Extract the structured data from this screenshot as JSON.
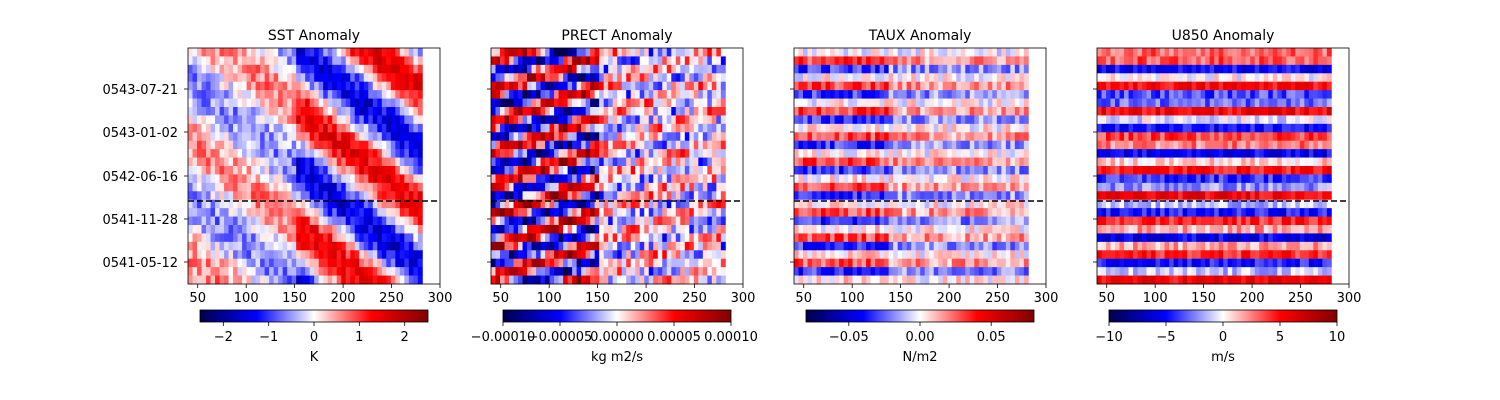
{
  "chart_data": [
    {
      "type": "heatmap",
      "title": "SST Anomaly",
      "x_ticks": [
        50,
        100,
        150,
        200,
        250,
        300
      ],
      "xlim": [
        40,
        300
      ],
      "y_tick_labels": [
        "0543-07-21",
        "0543-01-02",
        "0542-06-16",
        "0541-11-28",
        "0541-05-12"
      ],
      "colorbar_ticks": [
        "−2",
        "−1",
        "0",
        "1",
        "2"
      ],
      "colorbar_range": [
        -2.6,
        2.6
      ],
      "colorbar_label": "K",
      "colormap": "seismic",
      "reference_line": "dashed black horizontal line"
    },
    {
      "type": "heatmap",
      "title": "PRECT Anomaly",
      "x_ticks": [
        50,
        100,
        150,
        200,
        250,
        300
      ],
      "xlim": [
        40,
        300
      ],
      "colorbar_ticks": [
        "−0.00010",
        "−0.00005",
        "0.00000",
        "0.00005",
        "0.00010"
      ],
      "colorbar_range": [
        -0.0001,
        0.0001
      ],
      "colorbar_label": "kg m2/s",
      "colormap": "seismic",
      "reference_line": "dashed black horizontal line"
    },
    {
      "type": "heatmap",
      "title": "TAUX Anomaly",
      "x_ticks": [
        50,
        100,
        150,
        200,
        250,
        300
      ],
      "xlim": [
        40,
        300
      ],
      "colorbar_ticks": [
        "−0.05",
        "0.00",
        "0.05"
      ],
      "colorbar_range": [
        -0.08,
        0.08
      ],
      "colorbar_label": "N/m2",
      "colormap": "seismic",
      "reference_line": "dashed black horizontal line"
    },
    {
      "type": "heatmap",
      "title": "U850 Anomaly",
      "x_ticks": [
        50,
        100,
        150,
        200,
        250,
        300
      ],
      "xlim": [
        40,
        300
      ],
      "colorbar_ticks": [
        "−10",
        "−5",
        "0",
        "5",
        "10"
      ],
      "colorbar_range": [
        -10,
        10
      ],
      "colorbar_label": "m/s",
      "colormap": "seismic",
      "reference_line": "dashed black horizontal line"
    }
  ]
}
